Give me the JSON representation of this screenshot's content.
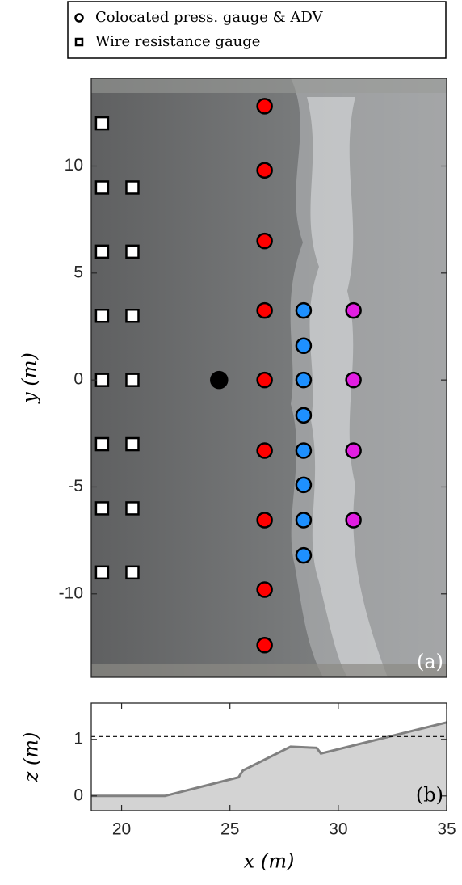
{
  "chart_data": [
    {
      "type": "scatter",
      "ylabel": "y (m)",
      "panel_label": "(a)",
      "xlim": [
        18.6,
        35
      ],
      "ylim": [
        -13.9,
        14.1
      ],
      "yticks": [
        -10,
        -5,
        0,
        5,
        10
      ],
      "series": [
        {
          "name": "Colocated press. gauge & ADV",
          "marker": "circle",
          "x": [
            26.6,
            26.6,
            26.6,
            26.6,
            26.6,
            26.6,
            26.6,
            26.6,
            26.6,
            28.4,
            28.4,
            28.4,
            28.4,
            28.4,
            28.4,
            28.4,
            28.4,
            30.7,
            30.7,
            30.7,
            30.7
          ],
          "values": [
            12.8,
            9.8,
            6.5,
            3.25,
            0,
            -3.3,
            -6.55,
            -9.8,
            -12.4,
            3.25,
            1.6,
            0,
            -1.65,
            -3.3,
            -4.9,
            -6.55,
            -8.2,
            3.25,
            0,
            -3.3,
            -6.55
          ],
          "colors": [
            "#ff0000",
            "#ff0000",
            "#ff0000",
            "#ff0000",
            "#ff0000",
            "#ff0000",
            "#ff0000",
            "#ff0000",
            "#ff0000",
            "#1e90ff",
            "#1e90ff",
            "#1e90ff",
            "#1e90ff",
            "#1e90ff",
            "#1e90ff",
            "#1e90ff",
            "#1e90ff",
            "#e21ee2",
            "#e21ee2",
            "#e21ee2",
            "#e21ee2"
          ]
        },
        {
          "name": "Wire resistance gauge",
          "marker": "square",
          "color": "#ffffff",
          "x": [
            19.1,
            19.1,
            19.1,
            19.1,
            19.1,
            19.1,
            19.1,
            19.1,
            20.5,
            20.5,
            20.5,
            20.5,
            20.5,
            20.5,
            20.5
          ],
          "values": [
            12,
            9,
            6,
            3,
            0,
            -3,
            -6,
            -9,
            9,
            6,
            3,
            0,
            -3,
            -6,
            -9
          ]
        },
        {
          "marker": "circle",
          "color": "#000000",
          "x": [
            24.5
          ],
          "values": [
            0
          ]
        }
      ]
    },
    {
      "type": "area",
      "xlabel": "x (m)",
      "ylabel": "z (m)",
      "panel_label": "(b)",
      "xlim": [
        18.6,
        35
      ],
      "ylim": [
        -0.26,
        1.64
      ],
      "xticks": [
        20,
        25,
        30,
        35
      ],
      "yticks": [
        0,
        1
      ],
      "x": [
        18.6,
        22,
        25.4,
        25.6,
        27.8,
        29.0,
        29.2,
        35
      ],
      "values": [
        0,
        0,
        0.33,
        0.45,
        0.87,
        0.85,
        0.75,
        1.3
      ],
      "color": "#d3d3d3",
      "line_color": "#808080",
      "reference_line": {
        "value": 1.05,
        "style": "dashed"
      }
    }
  ]
}
